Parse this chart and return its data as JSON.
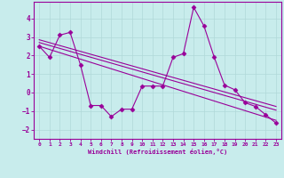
{
  "background_color": "#c8ecec",
  "grid_color": "#b0d8d8",
  "line_color": "#990099",
  "marker_color": "#990099",
  "xlabel": "Windchill (Refroidissement éolien,°C)",
  "xlim": [
    -0.5,
    23.5
  ],
  "ylim": [
    -2.5,
    4.9
  ],
  "yticks": [
    -2,
    -1,
    0,
    1,
    2,
    3,
    4
  ],
  "xticks": [
    0,
    1,
    2,
    3,
    4,
    5,
    6,
    7,
    8,
    9,
    10,
    11,
    12,
    13,
    14,
    15,
    16,
    17,
    18,
    19,
    20,
    21,
    22,
    23
  ],
  "series1": {
    "x": [
      0,
      1,
      2,
      3,
      4,
      5,
      6,
      7,
      8,
      9,
      10,
      11,
      12,
      13,
      14,
      15,
      16,
      17,
      18,
      19,
      20,
      21,
      22,
      23
    ],
    "y": [
      2.5,
      1.9,
      3.1,
      3.25,
      1.5,
      -0.7,
      -0.7,
      -1.3,
      -0.9,
      -0.9,
      0.35,
      0.35,
      0.35,
      1.9,
      2.1,
      4.6,
      3.6,
      1.9,
      0.4,
      0.15,
      -0.55,
      -0.75,
      -1.2,
      -1.65
    ]
  },
  "series2": {
    "x": [
      0,
      23
    ],
    "y": [
      2.85,
      -0.75
    ]
  },
  "series3": {
    "x": [
      0,
      23
    ],
    "y": [
      2.7,
      -0.95
    ]
  },
  "series4": {
    "x": [
      0,
      23
    ],
    "y": [
      2.5,
      -1.5
    ]
  }
}
